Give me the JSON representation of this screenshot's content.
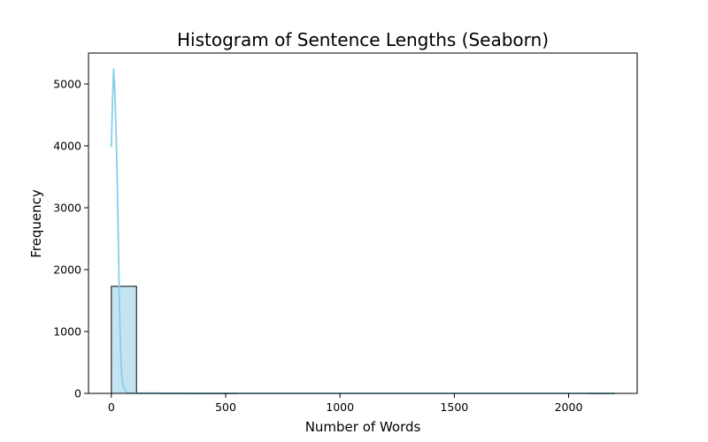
{
  "chart_data": {
    "type": "bar",
    "title": "Histogram of Sentence Lengths (Seaborn)",
    "xlabel": "Number of Words",
    "ylabel": "Frequency",
    "xlim": [
      -100,
      2300
    ],
    "ylim": [
      0,
      5500
    ],
    "xticks": [
      0,
      500,
      1000,
      1500,
      2000
    ],
    "yticks": [
      0,
      1000,
      2000,
      3000,
      4000,
      5000
    ],
    "grid": false,
    "bins": [
      {
        "x0": 0,
        "x1": 110,
        "count": 1730
      },
      {
        "x0": 110,
        "x1": 220,
        "count": 8
      },
      {
        "x0": 220,
        "x1": 330,
        "count": 3
      },
      {
        "x0": 330,
        "x1": 440,
        "count": 1
      },
      {
        "x0": 440,
        "x1": 550,
        "count": 1
      },
      {
        "x0": 550,
        "x1": 660,
        "count": 0
      },
      {
        "x0": 660,
        "x1": 770,
        "count": 0
      },
      {
        "x0": 770,
        "x1": 880,
        "count": 0
      },
      {
        "x0": 880,
        "x1": 990,
        "count": 0
      },
      {
        "x0": 990,
        "x1": 1100,
        "count": 0
      },
      {
        "x0": 1100,
        "x1": 1210,
        "count": 0
      },
      {
        "x0": 1210,
        "x1": 1320,
        "count": 0
      },
      {
        "x0": 1320,
        "x1": 1430,
        "count": 0
      },
      {
        "x0": 1430,
        "x1": 1540,
        "count": 0
      },
      {
        "x0": 1540,
        "x1": 1650,
        "count": 0
      },
      {
        "x0": 1650,
        "x1": 1760,
        "count": 0
      },
      {
        "x0": 1760,
        "x1": 1870,
        "count": 0
      },
      {
        "x0": 1870,
        "x1": 1980,
        "count": 0
      },
      {
        "x0": 1980,
        "x1": 2090,
        "count": 0
      },
      {
        "x0": 2090,
        "x1": 2200,
        "count": 1
      }
    ],
    "kde": {
      "x": [
        0,
        5,
        10,
        15,
        20,
        25,
        30,
        35,
        40,
        45,
        50,
        60,
        70,
        80,
        100,
        150,
        200,
        500,
        1000,
        1500,
        2000,
        2200
      ],
      "y": [
        3980,
        4700,
        5250,
        4900,
        4300,
        3600,
        2600,
        1500,
        700,
        320,
        150,
        50,
        15,
        5,
        2,
        1,
        1,
        0,
        0,
        0,
        0,
        0
      ]
    },
    "bar_fill": "#c4e4f4",
    "bar_edge": "#000000",
    "kde_color": "#87ceeb"
  }
}
